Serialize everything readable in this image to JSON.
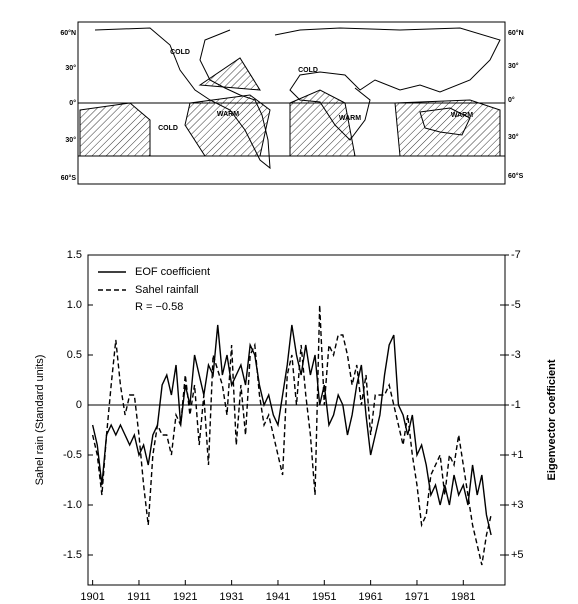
{
  "map": {
    "lat_labels_left": [
      "60°N",
      "30°",
      "0°",
      "30°",
      "60°S"
    ],
    "lat_labels_right": [
      "60°N",
      "30°",
      "0°",
      "30°",
      "60°S"
    ],
    "region_labels": [
      "COLD",
      "COLD",
      "COLD",
      "WARM",
      "WARM",
      "WARM"
    ]
  },
  "chart_data": {
    "type": "line",
    "ylabel": "Sahel rain (Standard units)",
    "y2label": "Eigenvector  coefficient",
    "annotation": "R = −0.58",
    "x": [
      1901,
      1902,
      1903,
      1904,
      1905,
      1906,
      1907,
      1908,
      1909,
      1910,
      1911,
      1912,
      1913,
      1914,
      1915,
      1916,
      1917,
      1918,
      1919,
      1920,
      1921,
      1922,
      1923,
      1924,
      1925,
      1926,
      1927,
      1928,
      1929,
      1930,
      1931,
      1932,
      1933,
      1934,
      1935,
      1936,
      1937,
      1938,
      1939,
      1940,
      1941,
      1942,
      1943,
      1944,
      1945,
      1946,
      1947,
      1948,
      1949,
      1950,
      1951,
      1952,
      1953,
      1954,
      1955,
      1956,
      1957,
      1958,
      1959,
      1960,
      1961,
      1962,
      1963,
      1964,
      1965,
      1966,
      1967,
      1968,
      1969,
      1970,
      1971,
      1972,
      1973,
      1974,
      1975,
      1976,
      1977,
      1978,
      1979,
      1980,
      1981,
      1982,
      1983,
      1984,
      1985,
      1986,
      1987
    ],
    "xlim": [
      1900,
      1990
    ],
    "xticks": [
      1901,
      1911,
      1921,
      1931,
      1941,
      1951,
      1961,
      1971,
      1981
    ],
    "ylim": [
      -1.8,
      1.5
    ],
    "yticks": [
      -1.5,
      {
        "value": -1,
        "label": "-1.0"
      },
      -0.5,
      0,
      0.5,
      {
        "value": 1,
        "label": "1.0"
      },
      1.5
    ],
    "y2lim": [
      6.2,
      -7
    ],
    "y2ticks": [
      -7,
      -5,
      -3,
      -1,
      {
        "value": 1,
        "label": "+1"
      },
      {
        "value": 3,
        "label": "+3"
      },
      {
        "value": 5,
        "label": "+5"
      }
    ],
    "series": [
      {
        "name": "EOF coefficient",
        "color": "#000000",
        "line_style": "solid",
        "axis": "y2",
        "values": [
          -0.2,
          0.6,
          2.2,
          0.2,
          -0.2,
          0.2,
          -0.2,
          0.2,
          0.6,
          0.2,
          1,
          0.6,
          1.4,
          0.2,
          -0.2,
          -1.8,
          -2.2,
          -1.4,
          -2.6,
          -0.2,
          -1.8,
          -1,
          -3,
          -2.2,
          -1.4,
          -2.6,
          -2.2,
          -4.2,
          -2.2,
          -3,
          -1.8,
          -2.2,
          -2.6,
          -1.8,
          -3.4,
          -3,
          -1.8,
          -1,
          -1.4,
          -0.6,
          -0.2,
          -1.4,
          -2.6,
          -4.2,
          -3,
          -2.2,
          -3.4,
          -2.2,
          -3,
          -1,
          -1.8,
          -0.2,
          -0.6,
          -1.4,
          -1,
          0.2,
          -0.6,
          -1.8,
          -2.6,
          -0.6,
          1,
          0.2,
          -0.6,
          -2.2,
          -3.4,
          -3.8,
          -1,
          -0.6,
          0.2,
          -0.6,
          1,
          0.6,
          1.4,
          2.6,
          2.2,
          3,
          2.2,
          3,
          1.8,
          2.6,
          2.2,
          3,
          1.4,
          2.6,
          1.8,
          3.4,
          4.2
        ]
      },
      {
        "name": "Sahel rainfall",
        "color": "#000000",
        "line_style": "dashed",
        "values": [
          -0.3,
          -0.5,
          -0.9,
          -0.3,
          0.2,
          0.65,
          0.2,
          -0.1,
          0.1,
          0.1,
          -0.3,
          -0.8,
          -1.2,
          -0.5,
          -0.2,
          -0.3,
          -0.3,
          -0.5,
          -0.1,
          -0.2,
          0.3,
          -0.1,
          0.2,
          -0.4,
          0.1,
          -0.6,
          0.5,
          0.35,
          0.2,
          -0.1,
          0.6,
          -0.4,
          0.2,
          -0.3,
          0.5,
          0.6,
          0.1,
          -0.2,
          -0.1,
          -0.3,
          -0.5,
          -0.7,
          0.3,
          0.5,
          0,
          0.6,
          0.1,
          -0.3,
          -0.9,
          1,
          0,
          0.6,
          0.5,
          0.7,
          0.7,
          0.5,
          0.2,
          0.4,
          0,
          0.3,
          -0.3,
          0.1,
          0.1,
          0.1,
          0.2,
          0,
          -0.2,
          -0.4,
          -0.1,
          -0.5,
          -0.8,
          -1.2,
          -1.1,
          -0.7,
          -0.6,
          -0.5,
          -0.9,
          -0.5,
          -0.6,
          -0.3,
          -0.6,
          -0.9,
          -1.2,
          -1.4,
          -1.6,
          -1.3,
          -1.1
        ]
      }
    ]
  }
}
